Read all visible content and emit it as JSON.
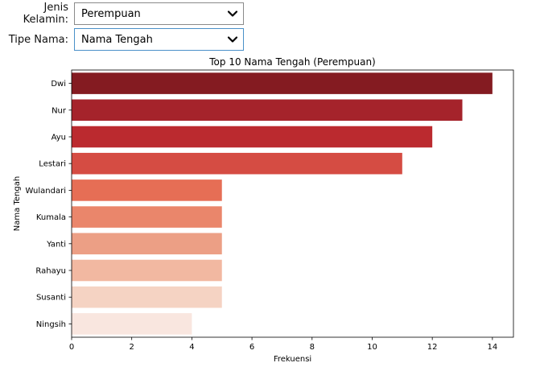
{
  "controls": {
    "gender": {
      "label": "Jenis Kelamin:",
      "value": "Perempuan"
    },
    "name_type": {
      "label": "Tipe Nama:",
      "value": "Nama Tengah"
    }
  },
  "colors": {
    "bars": [
      "#841b21",
      "#a5232b",
      "#bb2a2f",
      "#d54c43",
      "#e66e55",
      "#ea866b",
      "#ec9f85",
      "#f2b8a1",
      "#f5d3c3",
      "#f9e6df"
    ],
    "focus_border": "#4a90c8"
  },
  "chart_data": {
    "type": "bar",
    "orientation": "horizontal",
    "title": "Top 10 Nama Tengah (Perempuan)",
    "xlabel": "Frekuensi",
    "ylabel": "Nama Tengah",
    "categories": [
      "Dwi",
      "Nur",
      "Ayu",
      "Lestari",
      "Wulandari",
      "Kumala",
      "Yanti",
      "Rahayu",
      "Susanti",
      "Ningsih"
    ],
    "values": [
      14,
      13,
      12,
      11,
      5,
      5,
      5,
      5,
      5,
      4
    ],
    "xlim": [
      0,
      14.7
    ],
    "xticks": [
      0,
      2,
      4,
      6,
      8,
      10,
      12,
      14
    ],
    "grid": false,
    "legend": "none"
  }
}
